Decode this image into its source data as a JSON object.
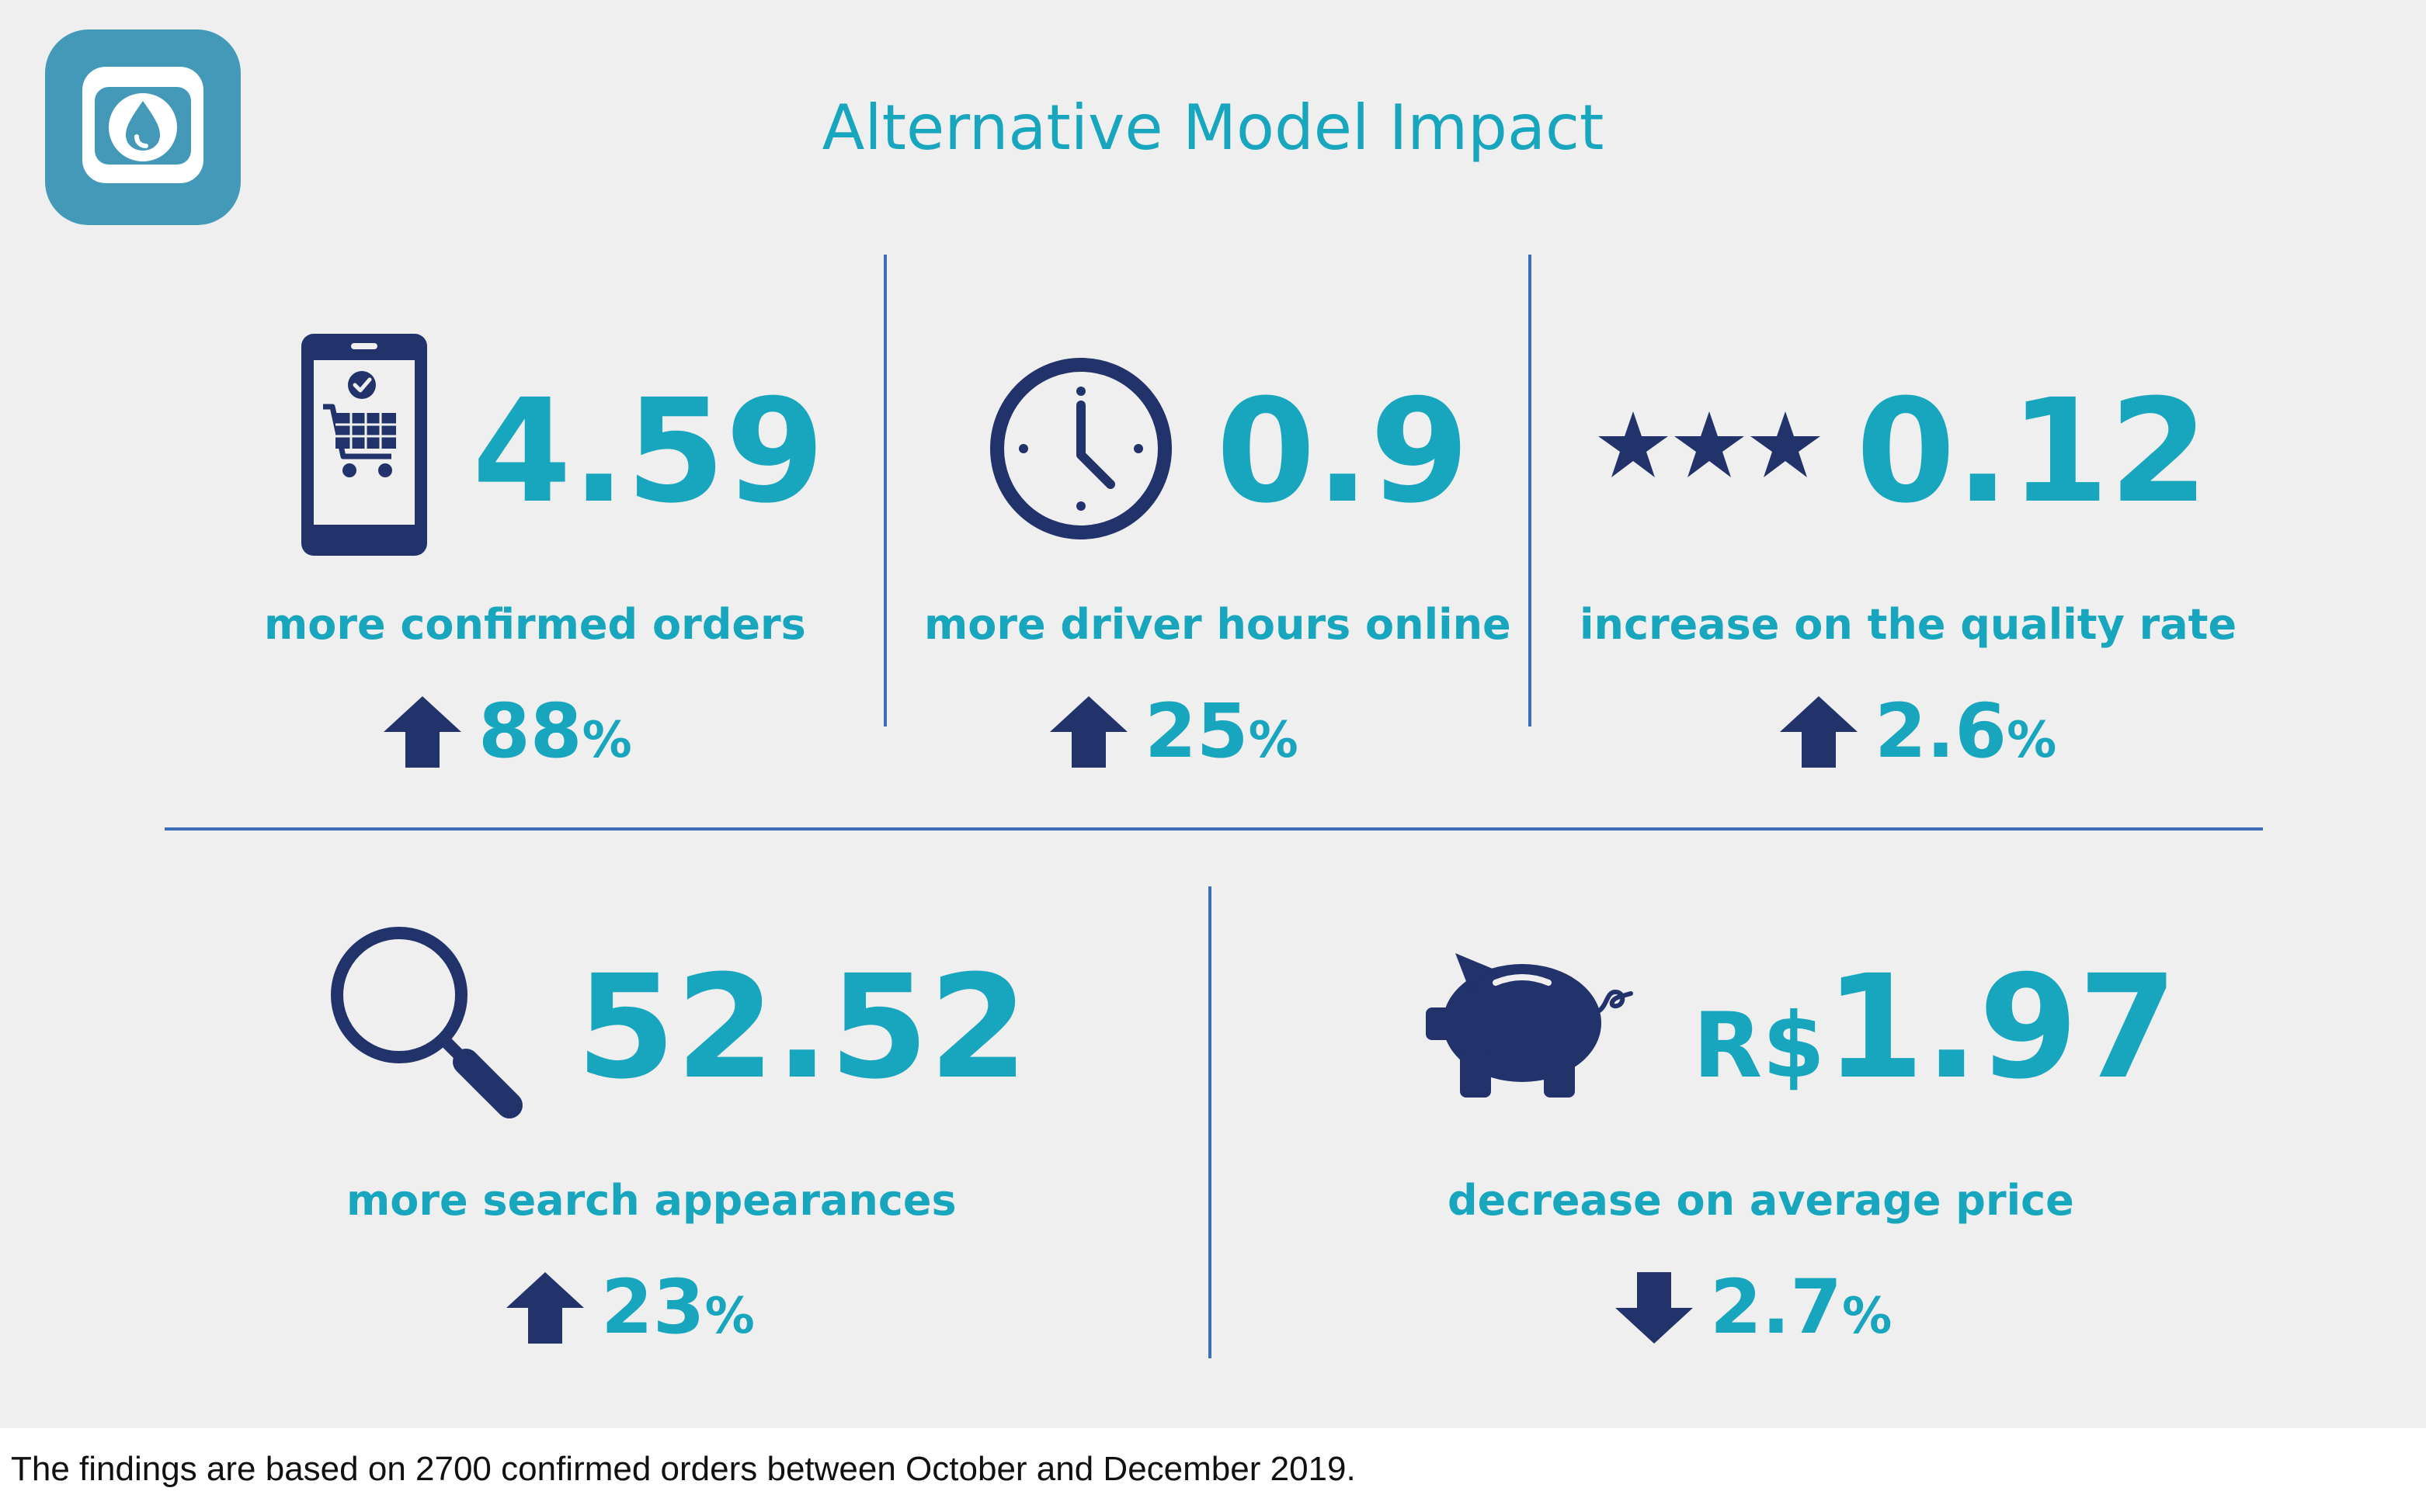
{
  "title": "Alternative Model Impact",
  "colors": {
    "accent": "#17a6bd",
    "icon": "#22336b",
    "divider": "#3d6db5",
    "logo": "#4499b8",
    "background": "#efefef"
  },
  "metrics": [
    {
      "icon": "phone-cart-icon",
      "value": "4.59",
      "label": "more confirmed orders",
      "direction": "up",
      "change": "88",
      "unit": "%"
    },
    {
      "icon": "clock-icon",
      "value": "0.9",
      "label": "more driver hours online",
      "direction": "up",
      "change": "25",
      "unit": "%"
    },
    {
      "icon": "three-stars-icon",
      "value": "0.12",
      "label": "increase on the quality rate",
      "direction": "up",
      "change": "2.6",
      "unit": "%"
    },
    {
      "icon": "magnifier-icon",
      "value": "52.52",
      "label": "more search appearances",
      "direction": "up",
      "change": "23",
      "unit": "%"
    },
    {
      "icon": "piggy-bank-icon",
      "currency": "R$",
      "value": "1.97",
      "label": "decrease on average price",
      "direction": "down",
      "change": "2.7",
      "unit": "%"
    }
  ],
  "footnote": "The findings are based on 2700 confirmed orders between October and December 2019."
}
